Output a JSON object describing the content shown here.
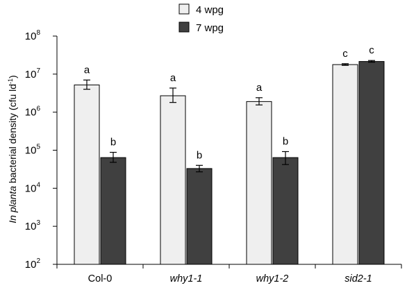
{
  "chart_data": {
    "type": "bar",
    "y_scale": "log",
    "ylim": [
      100,
      100000000
    ],
    "ylabel": {
      "italic_part": "In planta",
      "rest": " bacterial density (cfu ld",
      "unit_exponent": "-1",
      "close": ")"
    },
    "yticks": [
      {
        "base": "10",
        "exp": "2",
        "value": 100
      },
      {
        "base": "10",
        "exp": "3",
        "value": 1000
      },
      {
        "base": "10",
        "exp": "4",
        "value": 10000
      },
      {
        "base": "10",
        "exp": "5",
        "value": 100000
      },
      {
        "base": "10",
        "exp": "6",
        "value": 1000000
      },
      {
        "base": "10",
        "exp": "7",
        "value": 10000000
      },
      {
        "base": "10",
        "exp": "8",
        "value": 100000000
      }
    ],
    "categories": [
      {
        "label": "Col-0",
        "italic": false
      },
      {
        "label": "why1-1",
        "italic": true
      },
      {
        "label": "why1-2",
        "italic": true
      },
      {
        "label": "sid2-1",
        "italic": true
      }
    ],
    "series": [
      {
        "name": "4 wpg",
        "color": "#efefef",
        "values": [
          5200000,
          2700000,
          1900000,
          17800000
        ],
        "err_low": [
          4000000,
          1800000,
          1550000,
          17000000
        ],
        "err_high": [
          7000000,
          4300000,
          2400000,
          18800000
        ],
        "sig": [
          "a",
          "a",
          "a",
          "c"
        ]
      },
      {
        "name": "7 wpg",
        "color": "#404040",
        "values": [
          64000,
          33000,
          64000,
          21500000
        ],
        "err_low": [
          48000,
          27000,
          42000,
          20500000
        ],
        "err_high": [
          88000,
          40000,
          92000,
          22800000
        ],
        "sig": [
          "b",
          "b",
          "b",
          "c"
        ]
      }
    ]
  }
}
